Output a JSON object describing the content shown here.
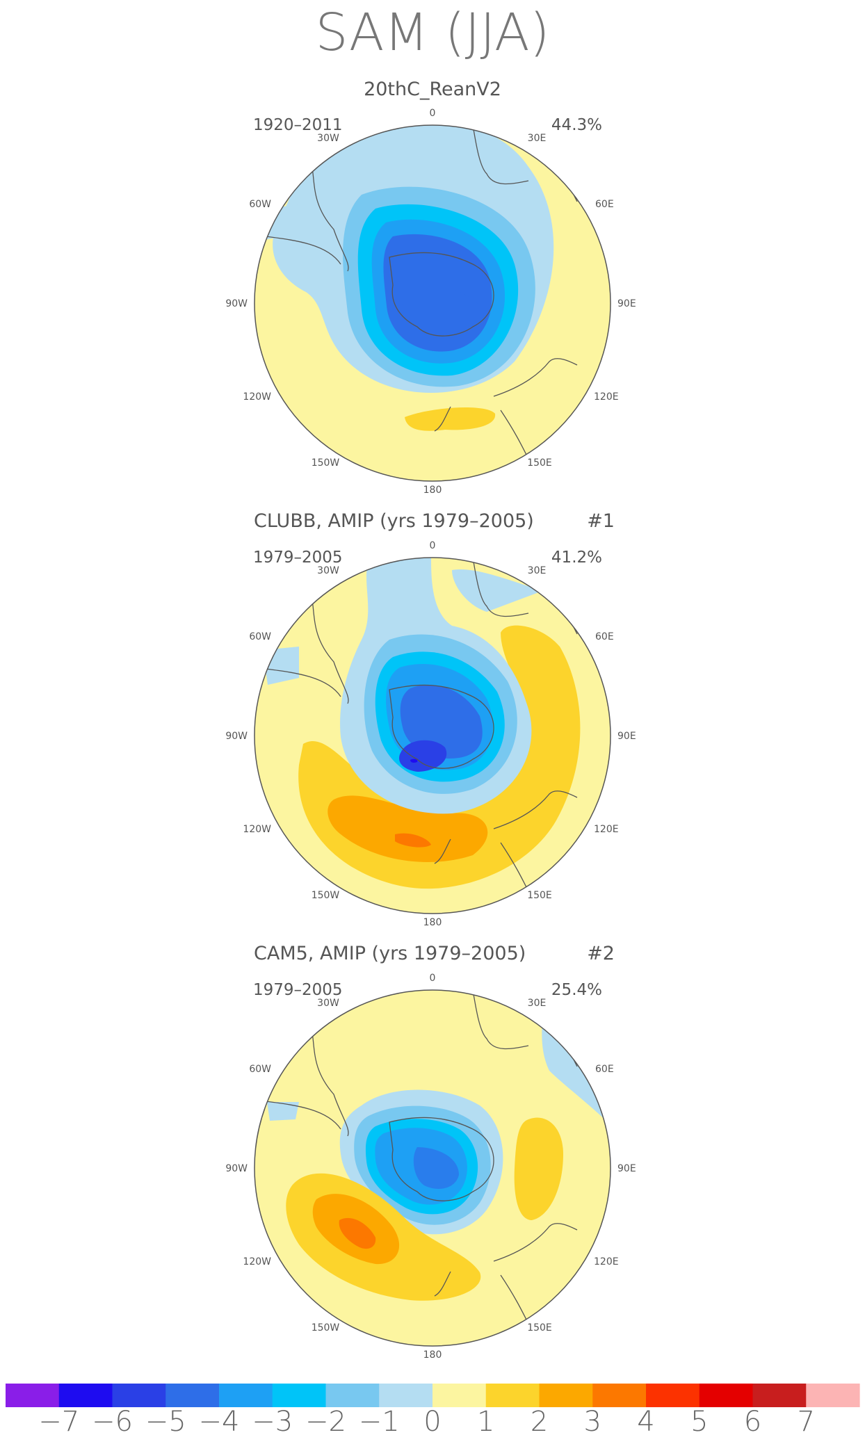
{
  "figure": {
    "title": "SAM (JJA)",
    "colorbar": {
      "labels": [
        "−7",
        "−6",
        "−5",
        "−4",
        "−3",
        "−2",
        "−1",
        "0",
        "1",
        "2",
        "3",
        "4",
        "5",
        "6",
        "7"
      ],
      "colors": [
        "#8a1ee8",
        "#1e0cf0",
        "#2a40e6",
        "#2e6ee8",
        "#1ea0f4",
        "#00c4f8",
        "#78c8f0",
        "#b4ddf2",
        "#fcf5a0",
        "#fcd42c",
        "#fca800",
        "#fc7800",
        "#fc3200",
        "#e40000",
        "#c81e1e",
        "#fcb4b4"
      ]
    },
    "panels": [
      {
        "title": "20thC_ReanV2",
        "tag": "",
        "period": "1920–2011",
        "variance": "44.3%",
        "axis_labels": {
          "top": "0",
          "lon30w": "30W",
          "lon30e": "30E",
          "lon60w": "60W",
          "lon60e": "60E",
          "lon90w": "90W",
          "lon90e": "90E",
          "lon120w": "120W",
          "lon120e": "120E",
          "lon150w": "150W",
          "lon150e": "150E",
          "bottom": "180"
        }
      },
      {
        "title": "CLUBB, AMIP (yrs 1979–2005)",
        "tag": "#1",
        "period": "1979–2005",
        "variance": "41.2%",
        "axis_labels": {
          "top": "0",
          "lon30w": "30W",
          "lon30e": "30E",
          "lon60w": "60W",
          "lon60e": "60E",
          "lon90w": "90W",
          "lon90e": "90E",
          "lon120w": "120W",
          "lon120e": "120E",
          "lon150w": "150W",
          "lon150e": "150E",
          "bottom": "180"
        }
      },
      {
        "title": "CAM5, AMIP (yrs 1979–2005)",
        "tag": "#2",
        "period": "1979–2005",
        "variance": "25.4%",
        "axis_labels": {
          "top": "0",
          "lon30w": "30W",
          "lon30e": "30E",
          "lon60w": "60W",
          "lon60e": "60E",
          "lon90w": "90W",
          "lon90e": "90E",
          "lon120w": "120W",
          "lon120e": "120E",
          "lon150w": "150W",
          "lon150e": "150E",
          "bottom": "180"
        }
      }
    ]
  }
}
